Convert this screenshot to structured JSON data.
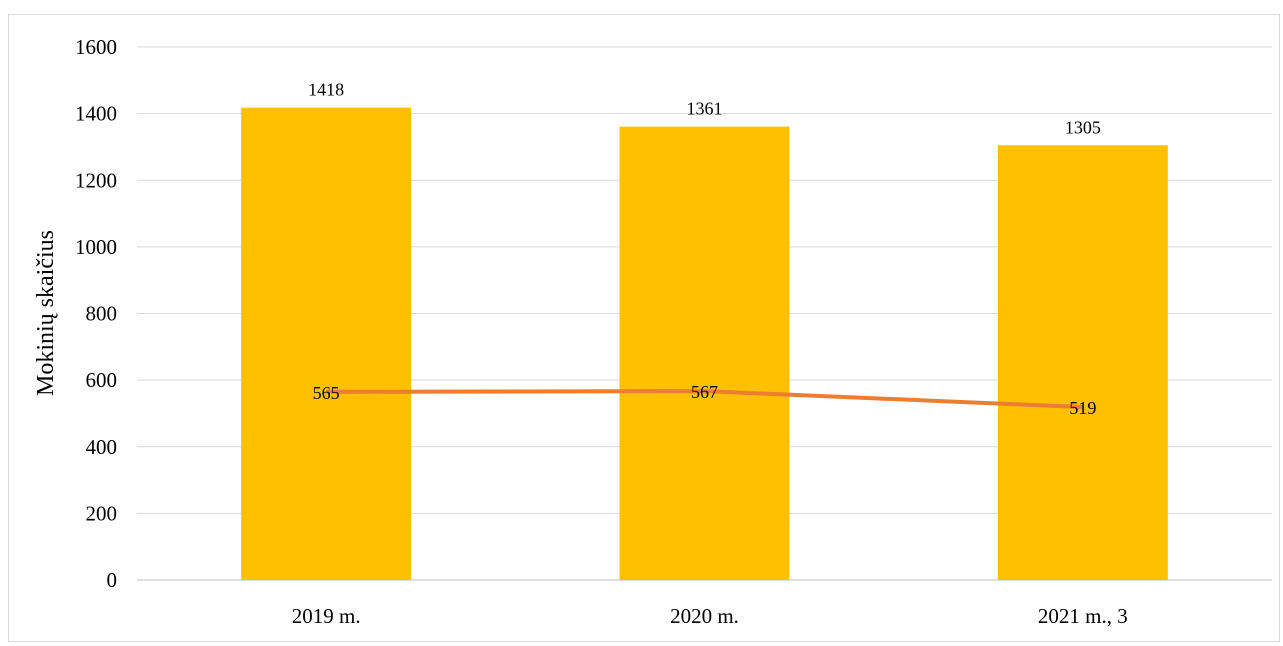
{
  "chart_data": {
    "type": "bar",
    "categories": [
      "2019 m.",
      "2020 m.",
      "2021 m., 3"
    ],
    "series": [
      {
        "type": "bar",
        "values": [
          1418,
          1361,
          1305
        ],
        "color": "#ffc000"
      },
      {
        "type": "line",
        "values": [
          565,
          567,
          519
        ],
        "color": "#ed7d31"
      }
    ],
    "ylabel": "Mokinių skaičius",
    "xlabel": "",
    "ylim": [
      0,
      1600
    ],
    "yticks": [
      0,
      200,
      400,
      600,
      800,
      1000,
      1200,
      1400,
      1600
    ],
    "grid": true,
    "legend": "none"
  }
}
